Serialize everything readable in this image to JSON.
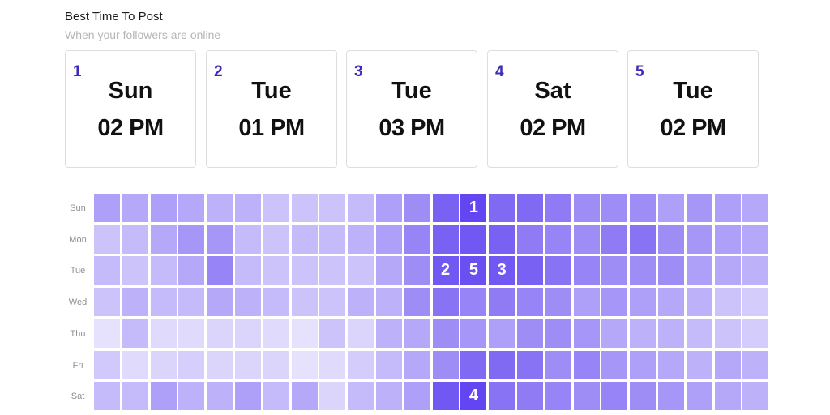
{
  "header": {
    "title": "Best Time To Post",
    "subtitle": "When your followers are online"
  },
  "best_times": [
    {
      "rank": "1",
      "day": "Sun",
      "time": "02 PM"
    },
    {
      "rank": "2",
      "day": "Tue",
      "time": "01 PM"
    },
    {
      "rank": "3",
      "day": "Tue",
      "time": "03 PM"
    },
    {
      "rank": "4",
      "day": "Sat",
      "time": "02 PM"
    },
    {
      "rank": "5",
      "day": "Tue",
      "time": "02 PM"
    }
  ],
  "heatmap": {
    "days": [
      "Sun",
      "Mon",
      "Tue",
      "Wed",
      "Thu",
      "Fri",
      "Sat"
    ],
    "hours_shown": 24,
    "color_base": "#5b3df0",
    "intensity": [
      [
        0.45,
        0.4,
        0.45,
        0.4,
        0.35,
        0.35,
        0.25,
        0.25,
        0.25,
        0.3,
        0.45,
        0.55,
        0.8,
        0.95,
        0.75,
        0.75,
        0.65,
        0.55,
        0.55,
        0.55,
        0.45,
        0.5,
        0.45,
        0.4
      ],
      [
        0.25,
        0.3,
        0.4,
        0.5,
        0.5,
        0.3,
        0.25,
        0.3,
        0.3,
        0.35,
        0.45,
        0.6,
        0.8,
        0.85,
        0.8,
        0.65,
        0.6,
        0.55,
        0.65,
        0.7,
        0.55,
        0.5,
        0.45,
        0.4
      ],
      [
        0.3,
        0.25,
        0.3,
        0.4,
        0.6,
        0.3,
        0.25,
        0.25,
        0.25,
        0.25,
        0.4,
        0.55,
        0.85,
        0.9,
        0.85,
        0.8,
        0.7,
        0.6,
        0.55,
        0.55,
        0.55,
        0.45,
        0.4,
        0.35
      ],
      [
        0.25,
        0.35,
        0.3,
        0.3,
        0.4,
        0.35,
        0.3,
        0.25,
        0.25,
        0.35,
        0.35,
        0.55,
        0.7,
        0.6,
        0.65,
        0.6,
        0.55,
        0.45,
        0.5,
        0.45,
        0.4,
        0.35,
        0.25,
        0.2
      ],
      [
        0.08,
        0.3,
        0.12,
        0.12,
        0.15,
        0.15,
        0.12,
        0.08,
        0.25,
        0.15,
        0.35,
        0.4,
        0.55,
        0.5,
        0.45,
        0.55,
        0.55,
        0.5,
        0.4,
        0.35,
        0.35,
        0.3,
        0.25,
        0.2
      ],
      [
        0.22,
        0.12,
        0.15,
        0.18,
        0.15,
        0.15,
        0.15,
        0.08,
        0.12,
        0.2,
        0.3,
        0.4,
        0.55,
        0.75,
        0.75,
        0.7,
        0.55,
        0.6,
        0.5,
        0.45,
        0.4,
        0.35,
        0.4,
        0.35
      ],
      [
        0.3,
        0.3,
        0.45,
        0.35,
        0.35,
        0.45,
        0.3,
        0.4,
        0.15,
        0.3,
        0.35,
        0.45,
        0.85,
        0.95,
        0.7,
        0.65,
        0.6,
        0.55,
        0.6,
        0.55,
        0.5,
        0.45,
        0.4,
        0.35
      ]
    ],
    "markers": [
      {
        "label": "1",
        "day": 0,
        "hour": 13
      },
      {
        "label": "2",
        "day": 2,
        "hour": 12
      },
      {
        "label": "5",
        "day": 2,
        "hour": 13
      },
      {
        "label": "3",
        "day": 2,
        "hour": 14
      },
      {
        "label": "4",
        "day": 6,
        "hour": 13
      }
    ]
  }
}
